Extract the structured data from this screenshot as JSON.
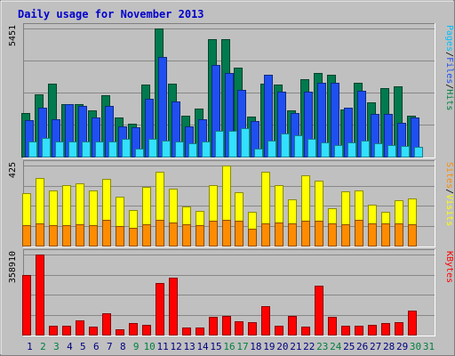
{
  "chart_data": {
    "type": "bar",
    "title": "Daily usage for November 2013",
    "categories": [
      "1",
      "2",
      "3",
      "4",
      "5",
      "6",
      "7",
      "8",
      "9",
      "10",
      "11",
      "12",
      "13",
      "14",
      "15",
      "16",
      "17",
      "18",
      "19",
      "20",
      "21",
      "22",
      "23",
      "24",
      "25",
      "26",
      "27",
      "28",
      "29",
      "30",
      "31"
    ],
    "weekend_days": [
      "2",
      "3",
      "9",
      "10",
      "16",
      "17",
      "23",
      "24",
      "30",
      "31"
    ],
    "colors": {
      "title": "#0000cc",
      "day": "#000080",
      "weekend": "#008040",
      "hits": "#007a4e",
      "files": "#1f4ff0",
      "pages": "#33e0ff",
      "visits": "#ffff00",
      "sites": "#ff8c00",
      "kbytes": "#ff0000"
    },
    "panels": [
      {
        "name": "hits-files-pages",
        "max_label": "5451",
        "ymax": 5451,
        "legend": [
          {
            "text": "Pages",
            "color": "#00bfff"
          },
          {
            "text": "Files",
            "color": "#1f4ff0"
          },
          {
            "text": "Hits",
            "color": "#008040"
          }
        ],
        "series": [
          {
            "name": "Hits",
            "color": "#007a4e",
            "values": [
              1850,
              2650,
              3100,
              2250,
              2250,
              1950,
              2600,
              1650,
              1400,
              3050,
              5451,
              3100,
              1750,
              2050,
              5000,
              5000,
              3800,
              1700,
              3100,
              3050,
              1950,
              3300,
              3550,
              3500,
              2000,
              3150,
              2300,
              2900,
              3000,
              1750,
              null
            ]
          },
          {
            "name": "Files",
            "color": "#1f4ff0",
            "values": [
              1550,
              2100,
              1600,
              2250,
              2150,
              1650,
              2150,
              1300,
              1250,
              2450,
              4250,
              2350,
              1300,
              1600,
              3900,
              3550,
              2850,
              1500,
              3500,
              2750,
              1850,
              2750,
              3150,
              3150,
              2100,
              2800,
              1800,
              1800,
              1450,
              1650,
              null
            ]
          },
          {
            "name": "Pages",
            "color": "#33e0ff",
            "values": [
              650,
              800,
              650,
              650,
              650,
              650,
              650,
              750,
              350,
              750,
              700,
              650,
              550,
              650,
              1100,
              1100,
              1200,
              350,
              700,
              1000,
              900,
              750,
              600,
              500,
              600,
              700,
              550,
              500,
              450,
              400,
              null
            ]
          }
        ]
      },
      {
        "name": "visits-sites",
        "max_label": "425",
        "ymax": 425,
        "legend": [
          {
            "text": "Sites",
            "color": "#ff8c00"
          },
          {
            "text": "Visits",
            "color": "#ffff00"
          }
        ],
        "series": [
          {
            "name": "Visits",
            "color": "#ffff00",
            "values": [
              280,
              360,
              295,
              320,
              330,
              295,
              355,
              260,
              190,
              310,
              390,
              300,
              210,
              185,
              320,
              425,
              285,
              180,
              390,
              320,
              245,
              375,
              345,
              200,
              290,
              295,
              215,
              180,
              240,
              250,
              null
            ]
          },
          {
            "name": "Sites",
            "color": "#ff8c00",
            "values": [
              110,
              120,
              110,
              110,
              115,
              110,
              135,
              105,
              95,
              115,
              135,
              125,
              115,
              110,
              130,
              135,
              130,
              90,
              120,
              125,
              120,
              130,
              130,
              120,
              115,
              135,
              120,
              120,
              120,
              115,
              null
            ]
          }
        ]
      },
      {
        "name": "kbytes",
        "max_label": "358910",
        "ymax": 358910,
        "legend": [
          {
            "text": "KBytes",
            "color": "#ff0000"
          }
        ],
        "series": [
          {
            "name": "KBytes",
            "color": "#ff0000",
            "values": [
              268000,
              358910,
              41000,
              38000,
              62000,
              35000,
              95000,
              23000,
              50000,
              42000,
              230000,
              256000,
              30000,
              32000,
              80000,
              85000,
              58000,
              55000,
              126000,
              38000,
              85000,
              35000,
              218000,
              80000,
              40000,
              40000,
              45000,
              50000,
              55000,
              107000,
              null
            ]
          }
        ]
      }
    ]
  }
}
